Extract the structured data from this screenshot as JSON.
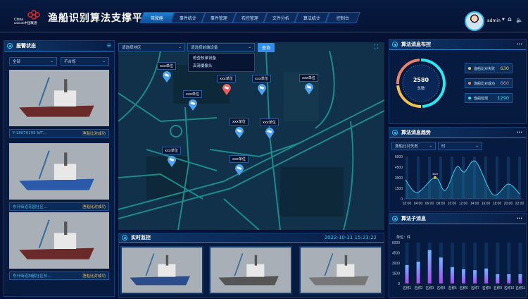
{
  "header": {
    "logo_text": "China unicom中国联通",
    "title": "渔船识别算法支撑平台",
    "tabs": [
      "驾驶舱",
      "事件统计",
      "事件管理",
      "布控管理",
      "文件分析",
      "算法统计",
      "控制台"
    ],
    "active_tab": 0,
    "user": "admin",
    "icons": [
      "avatar",
      "chevron-down-icon",
      "home-icon",
      "speaker-icon"
    ]
  },
  "left": {
    "title": "报警状态",
    "filter1": "全部",
    "filter2": "不合规",
    "items": [
      {
        "name": "Y-18070195-WT...",
        "status": "渔船比对成功"
      },
      {
        "name": "东升街道花园社区...",
        "status": "渔船比对成功"
      },
      {
        "name": "东升街道白鹤社区长...",
        "status": "渔船比对成功"
      }
    ]
  },
  "map": {
    "region_placeholder": "请选择地区",
    "device_placeholder": "请选择前端设备",
    "query": "查询",
    "dropdown": [
      "枪查核录设备",
      "高清摄像头"
    ],
    "marker_label": "xxx单位"
  },
  "live": {
    "title": "实时监控",
    "time": "2022-10-11 15:23:22"
  },
  "colors": {
    "accent": "#2f8ff0",
    "cyan": "#2ee6f0",
    "orange": "#e8826a",
    "yellow": "#f2c14b"
  },
  "donut": {
    "title": "算法消息布控",
    "total": "2580",
    "total_label": "总数",
    "items": [
      {
        "label": "渔船比对失败",
        "value": "630",
        "color": "#f2c14b"
      },
      {
        "label": "渔船比对成功",
        "value": "660",
        "color": "#e8826a"
      },
      {
        "label": "渔船检测",
        "value": "1290",
        "color": "#2ee6f0"
      }
    ]
  },
  "trend": {
    "title": "算法消息趋势",
    "filter1": "渔船比对失败",
    "filter2": "时"
  },
  "bars": {
    "title": "算法子消息",
    "unit": "单位：件"
  },
  "chart_data": [
    {
      "type": "area",
      "x_unit": "hour",
      "ylim": [
        0,
        6000
      ],
      "yticks": [
        "6000",
        "4500",
        "3000",
        "1500",
        "0"
      ],
      "xticks": [
        "02:00",
        "04:00",
        "06:00",
        "08:00",
        "10:00",
        "12:00",
        "14:00",
        "16:00",
        "18:00",
        "20:00",
        "22:00"
      ],
      "x": [
        1.75,
        3.8,
        7,
        8.8,
        10.8,
        12.2,
        14.2,
        17.3,
        20,
        22
      ],
      "values": [
        2700,
        900,
        3023,
        1200,
        4500,
        3800,
        5300,
        600,
        2100,
        700
      ],
      "annotation": "3023"
    },
    {
      "type": "bar",
      "ylim": [
        0,
        6000
      ],
      "yticks": [
        "6000",
        "4500",
        "3000",
        "1500",
        "0"
      ],
      "categories": [
        "名称1",
        "名称2",
        "名称3",
        "名称4",
        "名称5",
        "名称6",
        "名称7",
        "名称8",
        "名称9",
        "名称10",
        "名称11"
      ],
      "values": [
        2700,
        3200,
        4900,
        3800,
        2400,
        2100,
        1950,
        2200,
        1350,
        1350,
        1350
      ]
    }
  ]
}
